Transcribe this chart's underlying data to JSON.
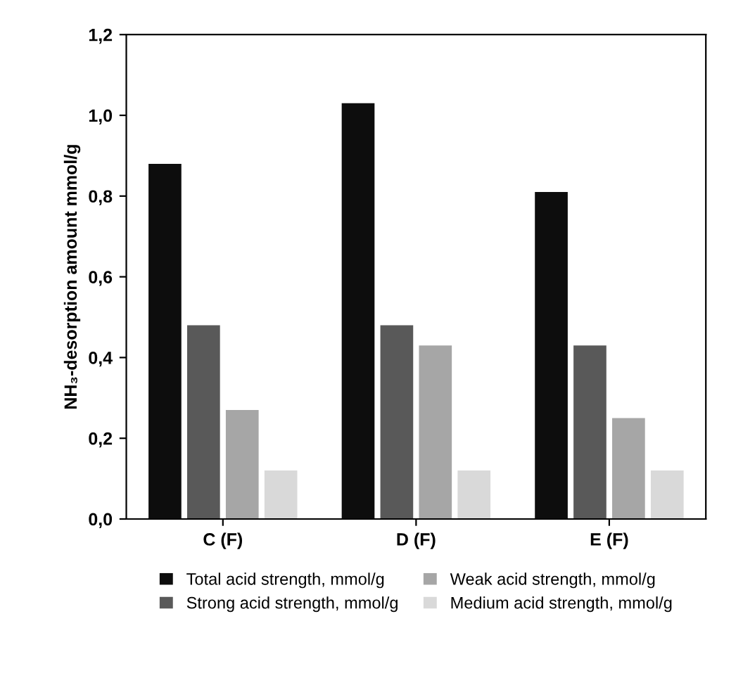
{
  "chart_data": {
    "type": "bar",
    "ylabel": "NH₃-desorption amount mmol/g",
    "categories": [
      "C (F)",
      "D (F)",
      "E (F)"
    ],
    "series": [
      {
        "name": "Total acid strength, mmol/g",
        "color": "#0d0d0d",
        "values": [
          0.88,
          1.03,
          0.81
        ]
      },
      {
        "name": "Strong acid strength, mmol/g",
        "color": "#595959",
        "values": [
          0.48,
          0.48,
          0.43
        ]
      },
      {
        "name": "Weak acid strength, mmol/g",
        "color": "#a6a6a6",
        "values": [
          0.27,
          0.43,
          0.25
        ]
      },
      {
        "name": "Medium acid strength, mmol/g",
        "color": "#d9d9d9",
        "values": [
          0.12,
          0.12,
          0.12
        ]
      }
    ],
    "ylim": [
      0,
      1.2
    ],
    "yticks": [
      {
        "value": 0,
        "label": "0,0"
      },
      {
        "value": 0.2,
        "label": "0,2"
      },
      {
        "value": 0.4,
        "label": "0,4"
      },
      {
        "value": 0.6,
        "label": "0,6"
      },
      {
        "value": 0.8,
        "label": "0,8"
      },
      {
        "value": 1.0,
        "label": "1,0"
      },
      {
        "value": 1.2,
        "label": "1,2"
      }
    ],
    "grid": false,
    "legend": "bottom"
  }
}
